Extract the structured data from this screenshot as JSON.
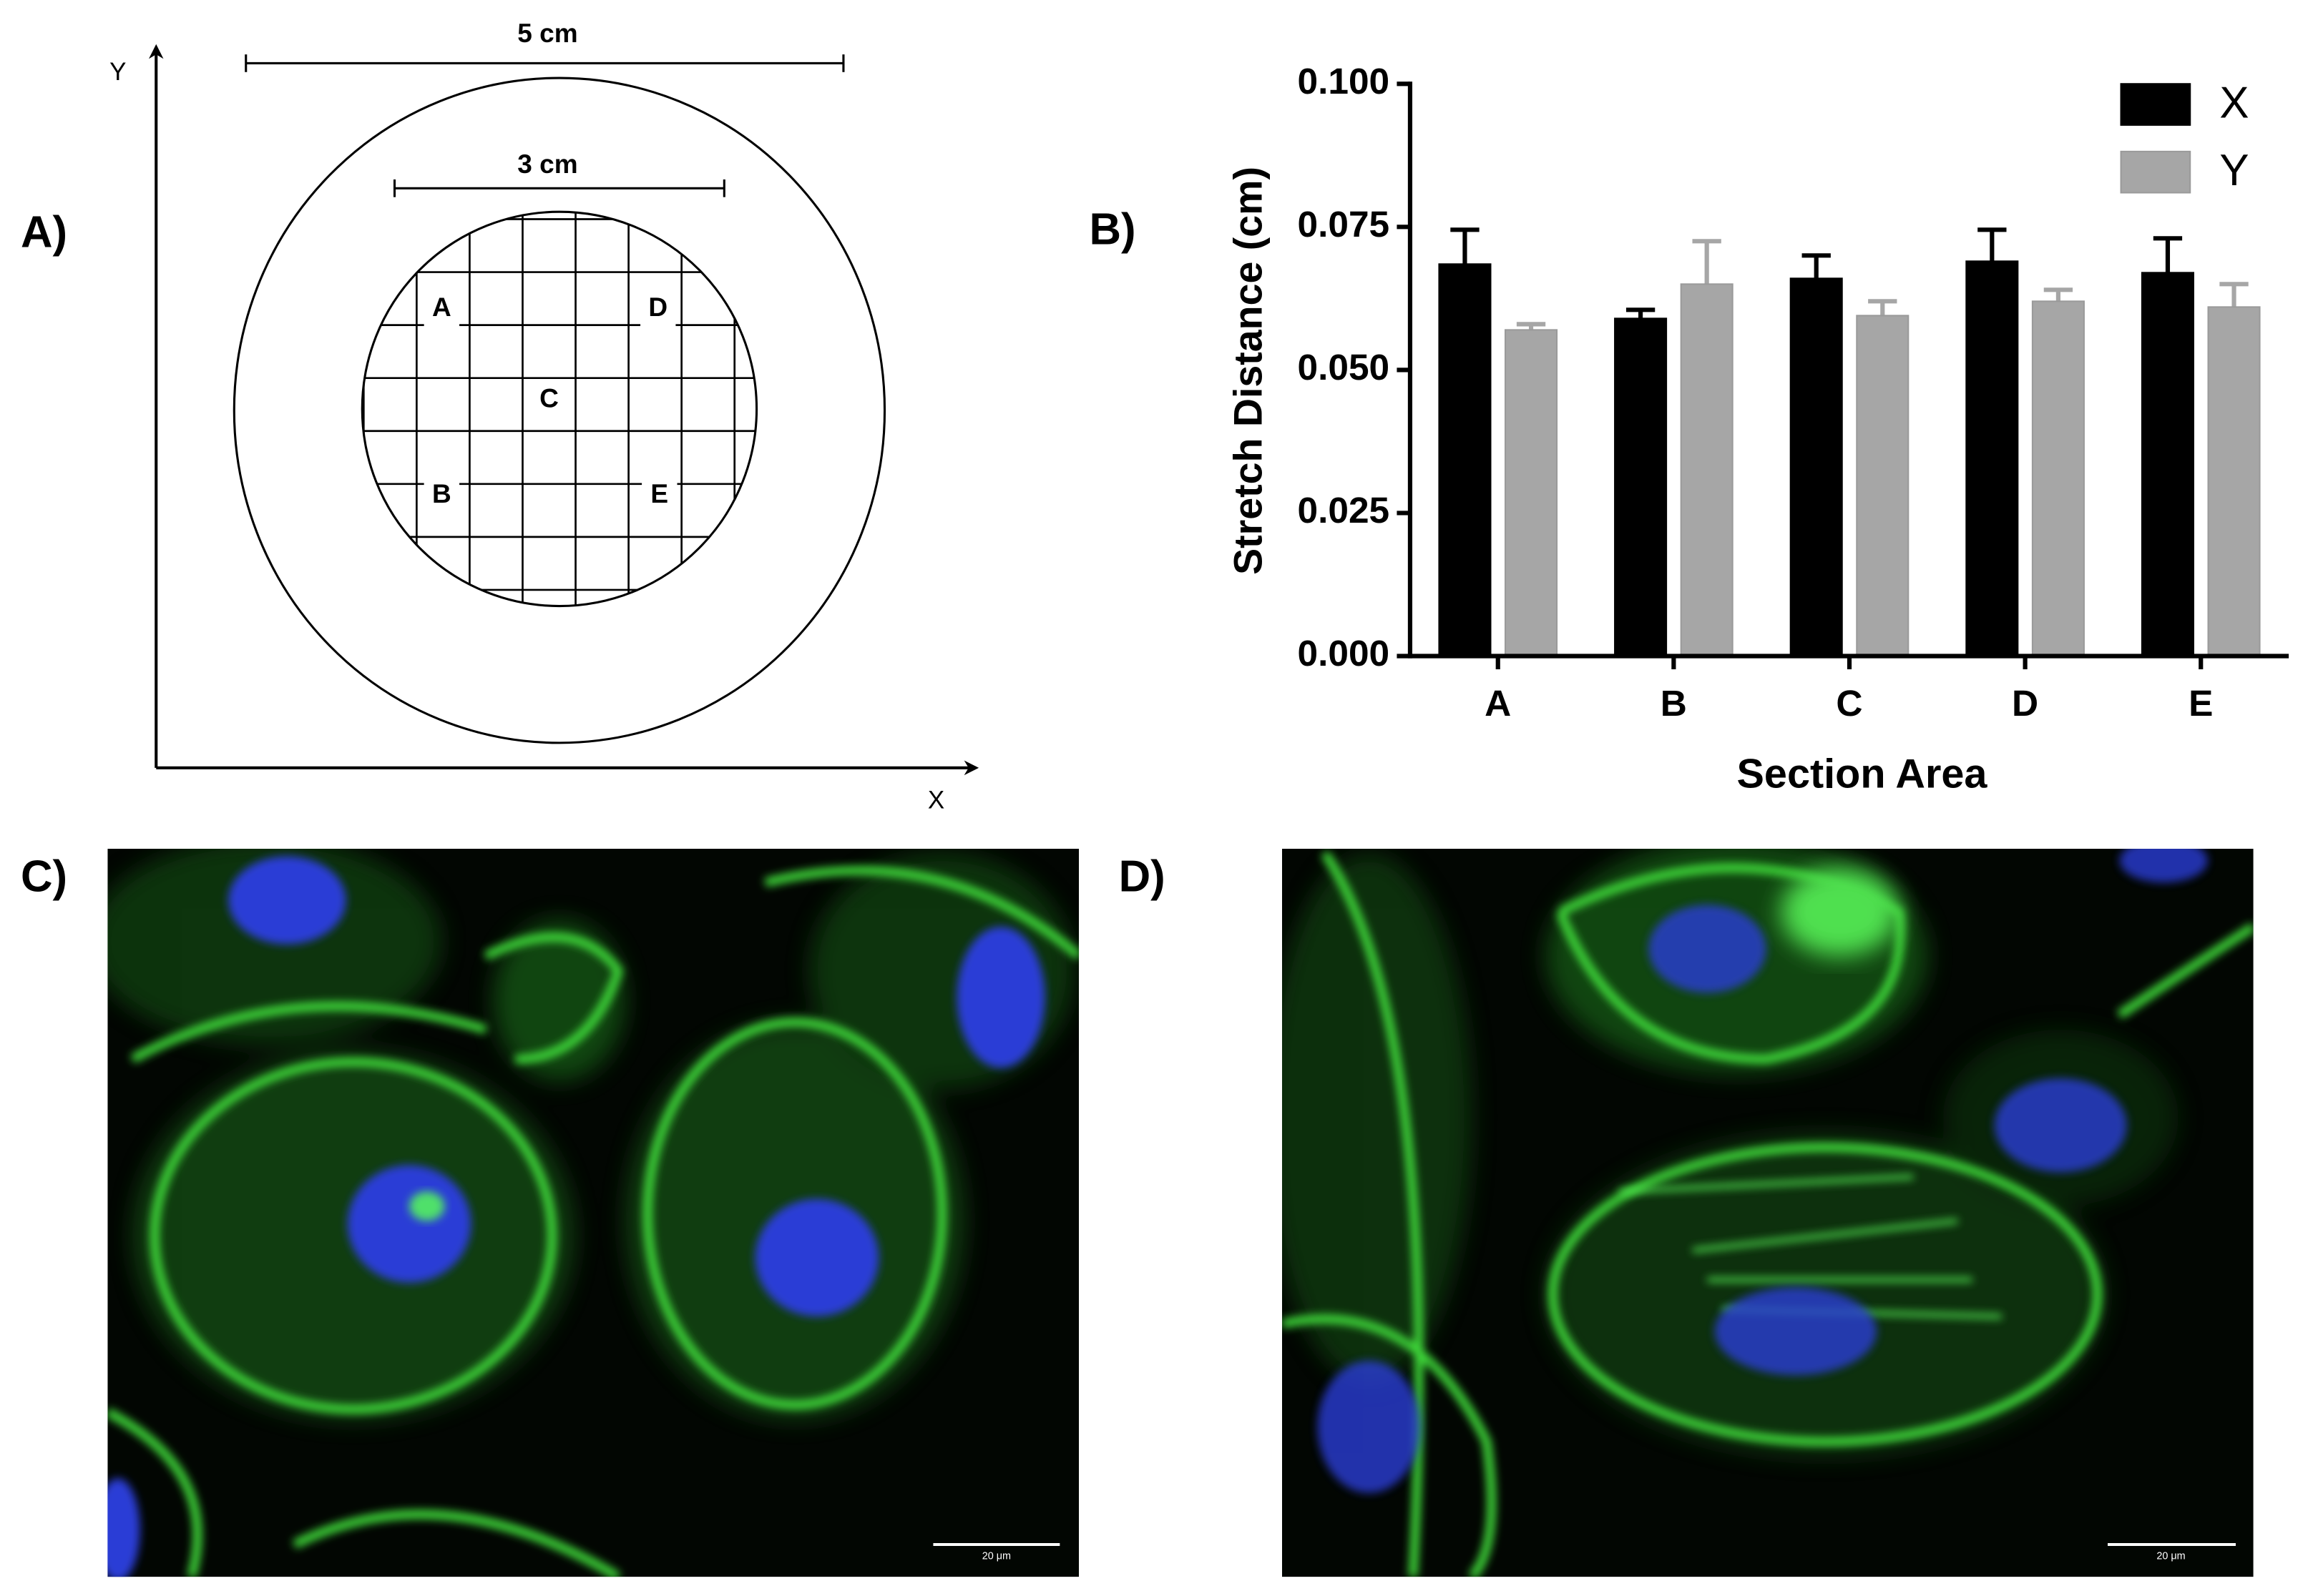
{
  "panel_labels": [
    "A)",
    "B)",
    "C)",
    "D)"
  ],
  "diagram": {
    "axis_labels": {
      "x": "X",
      "y": "Y"
    },
    "outer_diameter": "5 cm",
    "inner_diameter": "3 cm",
    "sections": [
      "A",
      "D",
      "C",
      "B",
      "E"
    ]
  },
  "micrographs": {
    "scale_bars": [
      "20 μm",
      "20 μm"
    ]
  },
  "chart_data": {
    "type": "bar",
    "y_label": "Stretch Distance (cm)",
    "x_label": "Section Area",
    "categories": [
      "A",
      "B",
      "C",
      "D",
      "E"
    ],
    "series": [
      {
        "name": "X",
        "color": "#000000",
        "values": [
          0.0685,
          0.059,
          0.066,
          0.069,
          0.067
        ],
        "errors": [
          0.006,
          0.0015,
          0.004,
          0.0055,
          0.006
        ]
      },
      {
        "name": "Y",
        "color": "#a6a6a6",
        "values": [
          0.057,
          0.065,
          0.0595,
          0.062,
          0.061
        ],
        "errors": [
          0.001,
          0.0075,
          0.0025,
          0.002,
          0.004
        ]
      }
    ],
    "ylim": [
      0,
      0.1
    ],
    "yticks": [
      {
        "value": 0,
        "label": "0.000"
      },
      {
        "value": 0.025,
        "label": "0.025"
      },
      {
        "value": 0.05,
        "label": "0.050"
      },
      {
        "value": 0.075,
        "label": "0.075"
      },
      {
        "value": 0.1,
        "label": "0.100"
      }
    ],
    "error_bars": "upper",
    "legend": "top-right",
    "grid": false
  }
}
